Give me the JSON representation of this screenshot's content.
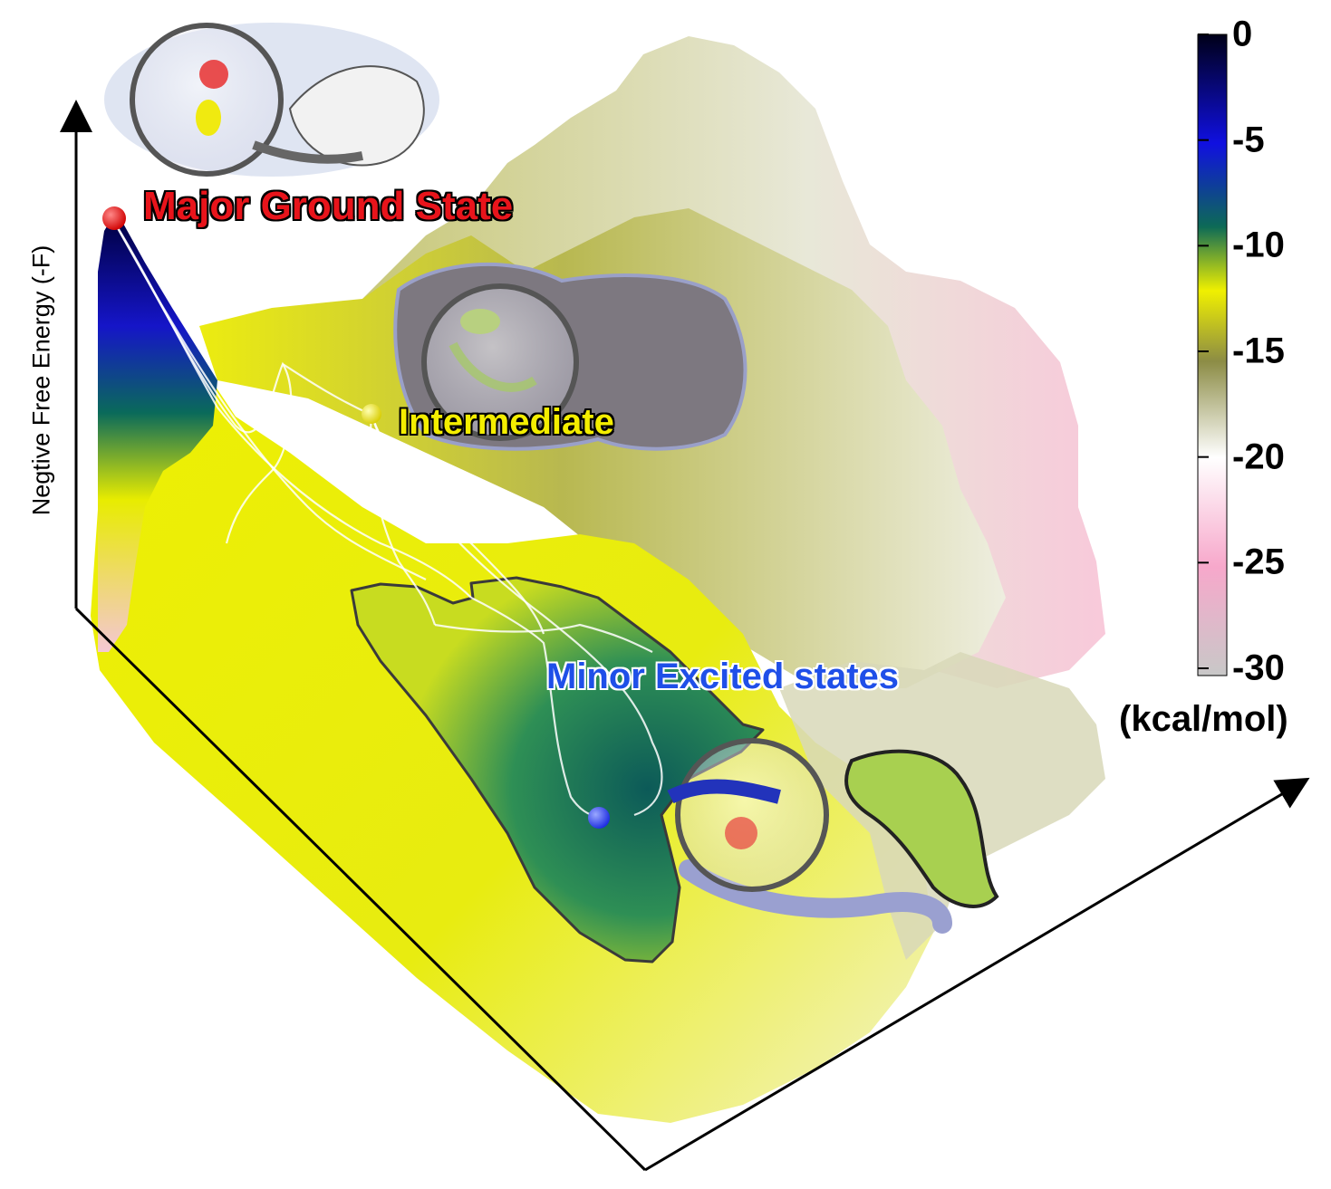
{
  "labels": {
    "major_ground_state": "Major Ground State",
    "intermediate": "Intermediate",
    "minor_excited_states": "Minor Excited states"
  },
  "axis": {
    "y_label": "Negtive Free Energy (-F)"
  },
  "colorbar": {
    "unit": "(kcal/mol)",
    "ticks": [
      {
        "value": 0,
        "label": "0"
      },
      {
        "value": -5,
        "label": "-5"
      },
      {
        "value": -10,
        "label": "-10"
      },
      {
        "value": -15,
        "label": "-15"
      },
      {
        "value": -20,
        "label": "-20"
      },
      {
        "value": -25,
        "label": "-25"
      },
      {
        "value": -30,
        "label": "-30"
      }
    ],
    "colors": [
      "#000018",
      "#1010c8",
      "#0a6a50",
      "#e8ec00",
      "#8a8a40",
      "#ffffff",
      "#f7a8cb",
      "#cccccc"
    ]
  },
  "state_colors": {
    "major": "#e8141b",
    "intermediate": "#f4ee00",
    "minor": "#2233ee"
  }
}
